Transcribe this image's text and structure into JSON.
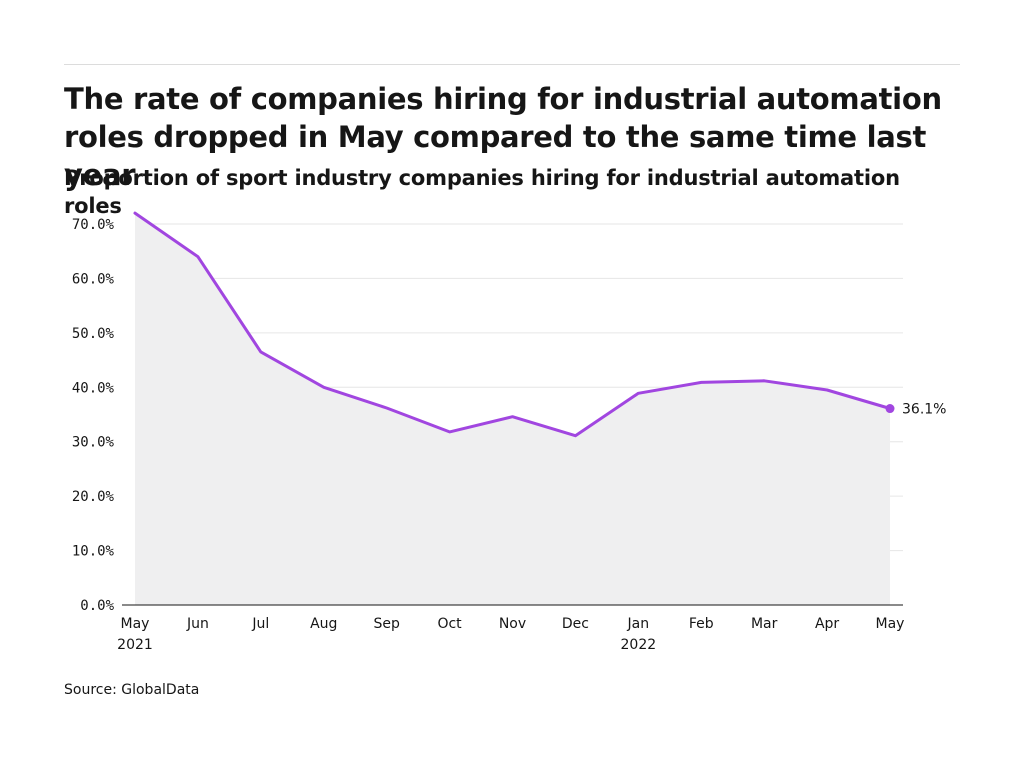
{
  "header": {
    "title": "The rate of companies hiring for industrial automation roles dropped in May compared to the same time last year",
    "subtitle": "Proportion of sport industry companies hiring for industrial automation roles"
  },
  "footer": {
    "source": "Source: GlobalData"
  },
  "colors": {
    "line": "#a146e0",
    "area": "#efeff0",
    "grid": "#e6e6e6",
    "axis": "#161616"
  },
  "chart_data": {
    "type": "area",
    "title": "The rate of companies hiring for industrial automation roles dropped in May compared to the same time last year",
    "subtitle": "Proportion of sport industry companies hiring for industrial automation roles",
    "xlabel": "",
    "ylabel": "",
    "categories": [
      "May 2021",
      "Jun 2021",
      "Jul 2021",
      "Aug 2021",
      "Sep 2021",
      "Oct 2021",
      "Nov 2021",
      "Dec 2021",
      "Jan 2022",
      "Feb 2022",
      "Mar 2022",
      "Apr 2022",
      "May 2022"
    ],
    "x_tick_labels": [
      {
        "month": "May",
        "year": "2021"
      },
      {
        "month": "Jun",
        "year": ""
      },
      {
        "month": "Jul",
        "year": ""
      },
      {
        "month": "Aug",
        "year": ""
      },
      {
        "month": "Sep",
        "year": ""
      },
      {
        "month": "Oct",
        "year": ""
      },
      {
        "month": "Nov",
        "year": ""
      },
      {
        "month": "Dec",
        "year": ""
      },
      {
        "month": "Jan",
        "year": "2022"
      },
      {
        "month": "Feb",
        "year": ""
      },
      {
        "month": "Mar",
        "year": ""
      },
      {
        "month": "Apr",
        "year": ""
      },
      {
        "month": "May",
        "year": ""
      }
    ],
    "values": [
      72.0,
      64.0,
      46.5,
      40.0,
      36.2,
      31.8,
      34.6,
      31.1,
      38.9,
      40.9,
      41.2,
      39.5,
      36.1
    ],
    "ylim": [
      0,
      70
    ],
    "y_ticks": [
      0,
      10,
      20,
      30,
      40,
      50,
      60,
      70
    ],
    "y_tick_labels": [
      "0.0%",
      "10.0%",
      "20.0%",
      "30.0%",
      "40.0%",
      "50.0%",
      "60.0%",
      "70.0%"
    ],
    "end_label": "36.1%",
    "grid": true,
    "legend": "none"
  }
}
